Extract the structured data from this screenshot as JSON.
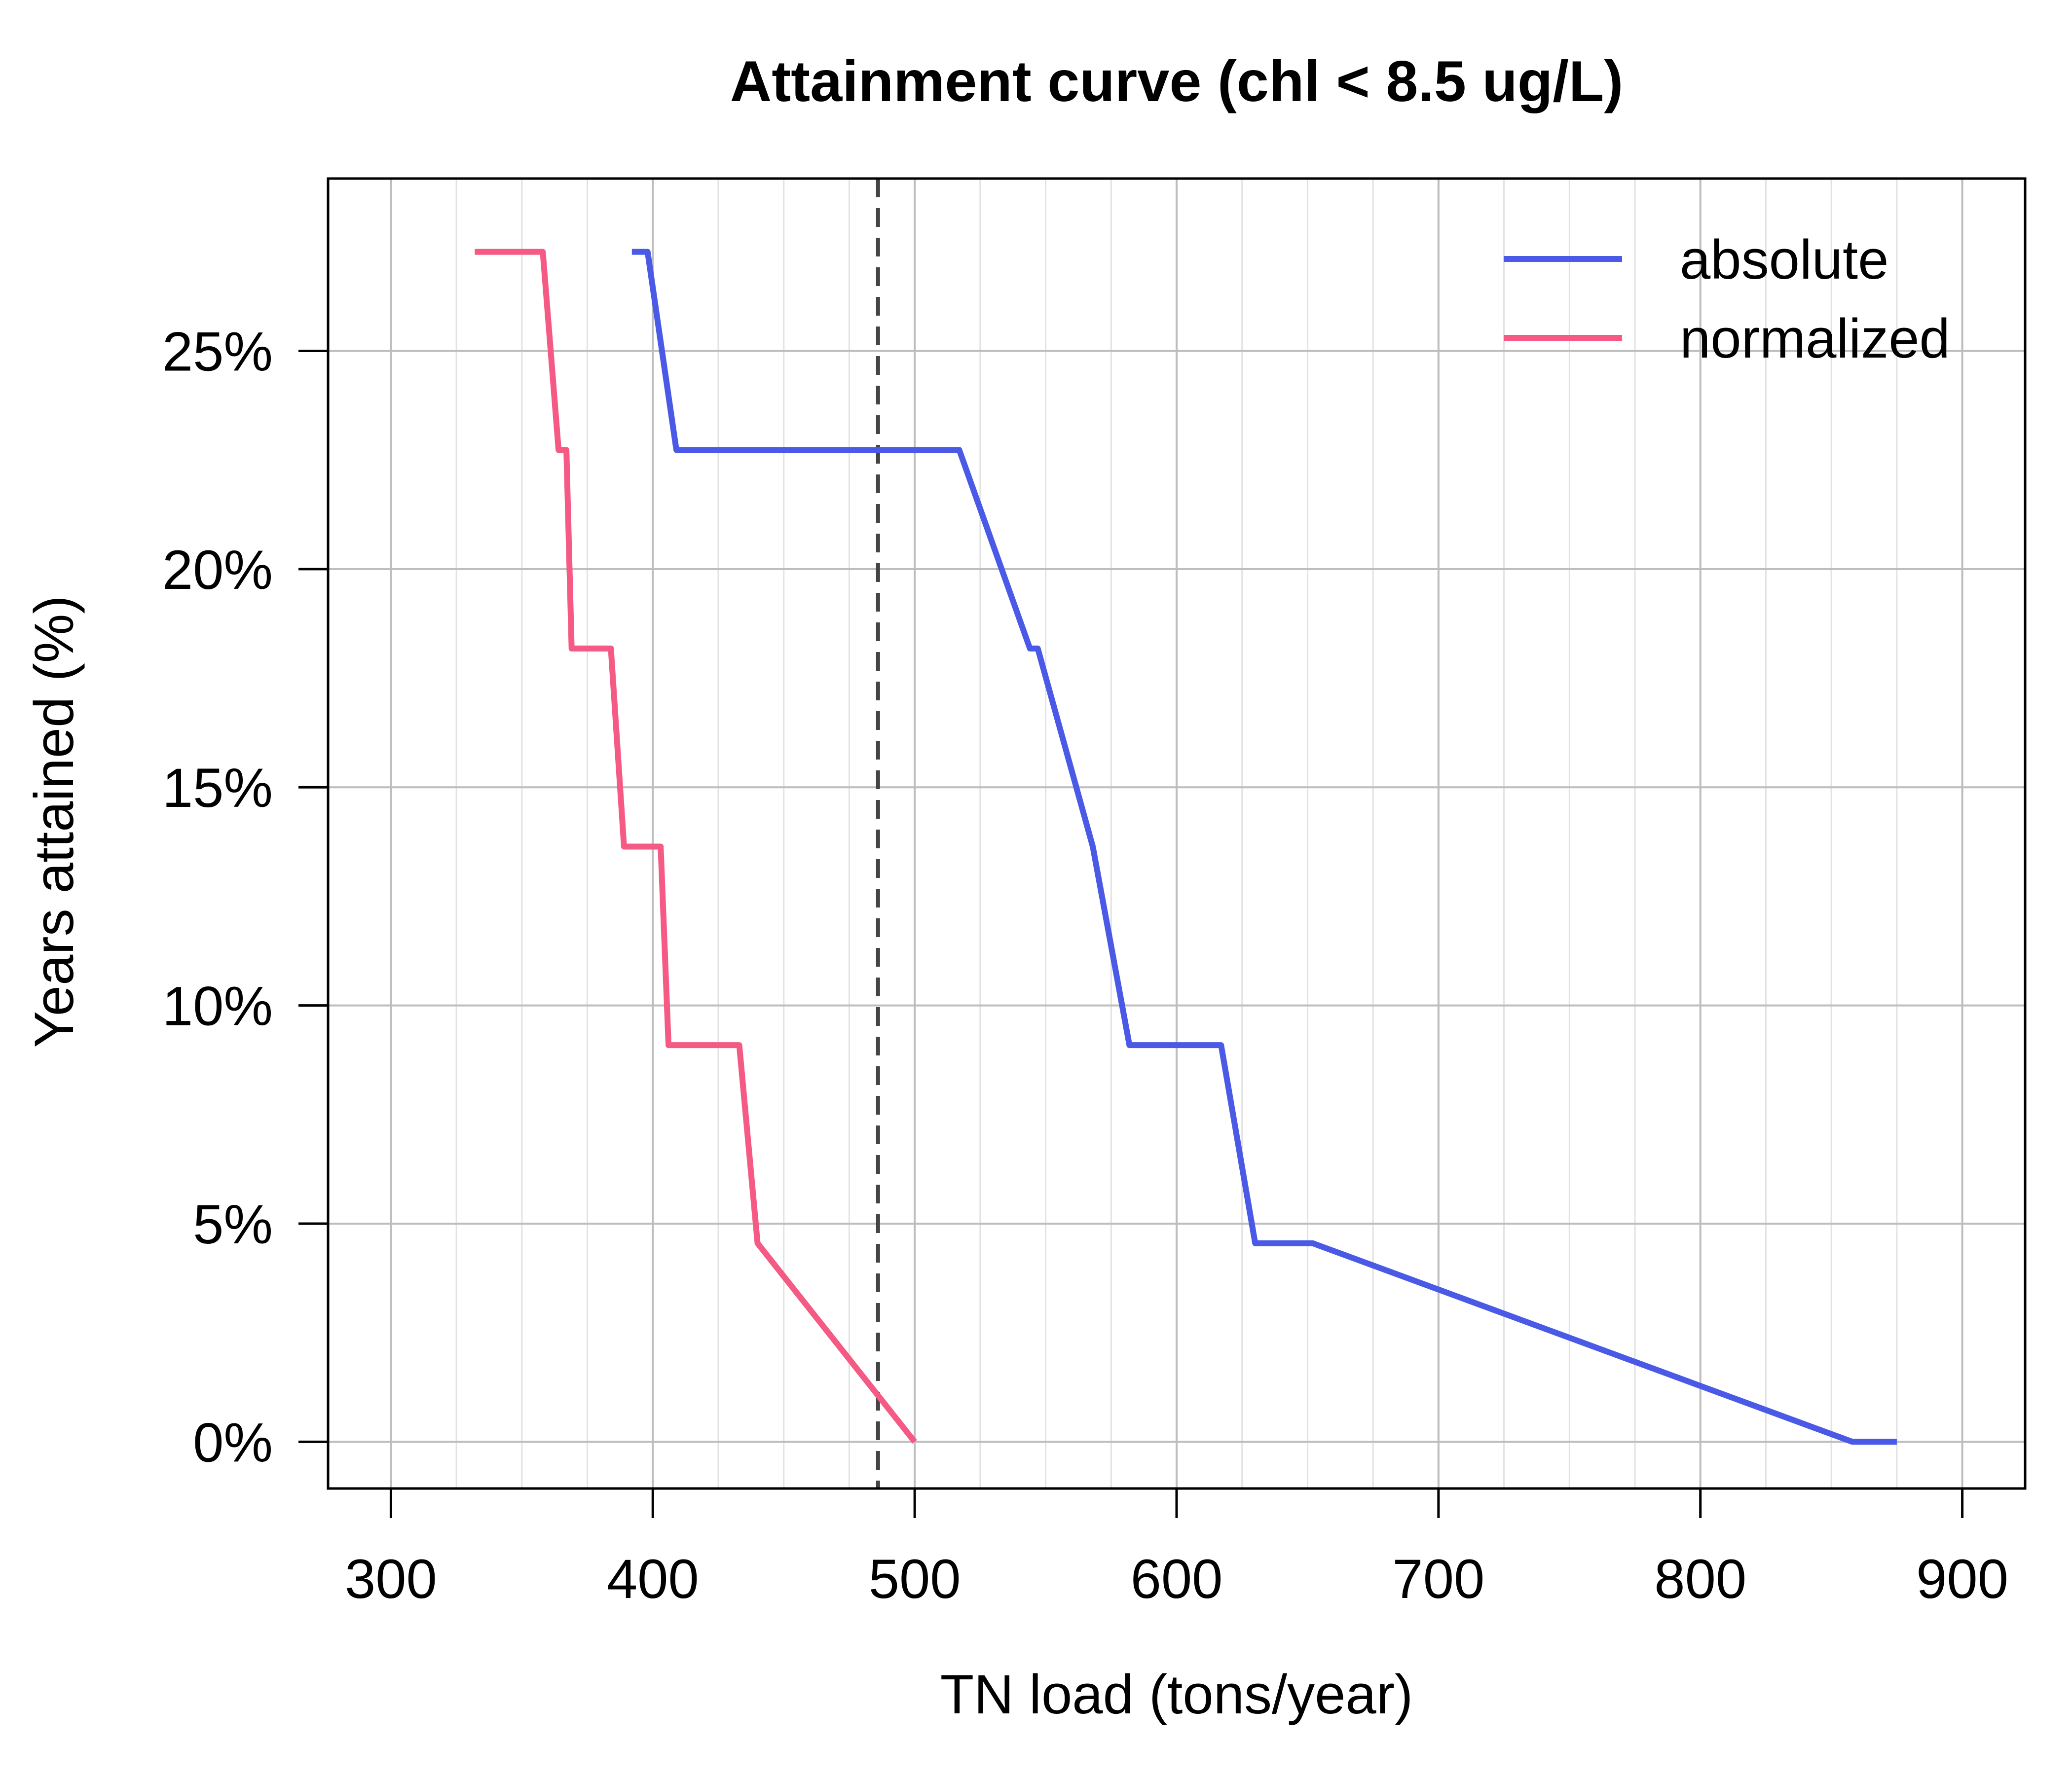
{
  "chart_data": {
    "type": "line",
    "title": "Attainment curve (chl < 8.5 ug/L)",
    "xlabel": "TN load (tons/year)",
    "ylabel": "Years attained (%)",
    "xlim": [
      276,
      924
    ],
    "ylim": [
      -1.07,
      28.95
    ],
    "x_ticks": [
      300,
      400,
      500,
      600,
      700,
      800,
      900
    ],
    "x_tick_labels": [
      "300",
      "400",
      "500",
      "600",
      "700",
      "800",
      "900"
    ],
    "y_ticks": [
      0,
      5,
      10,
      15,
      20,
      25
    ],
    "y_tick_labels": [
      "0%",
      "5%",
      "10%",
      "15%",
      "20%",
      "25%"
    ],
    "x_minor_step": 25,
    "grid": true,
    "reference_line": {
      "x": 486,
      "style": "dashed",
      "color": "#444444"
    },
    "legend_position": "top-right",
    "series": [
      {
        "name": "absolute",
        "color": "#4a5ae6",
        "points": [
          [
            392,
            27.27
          ],
          [
            398,
            27.27
          ],
          [
            409,
            22.73
          ],
          [
            517,
            22.73
          ],
          [
            544,
            18.18
          ],
          [
            547,
            18.18
          ],
          [
            568,
            13.64
          ],
          [
            582,
            9.09
          ],
          [
            617,
            9.09
          ],
          [
            630,
            4.55
          ],
          [
            652,
            4.55
          ],
          [
            858,
            0
          ],
          [
            875,
            0
          ]
        ]
      },
      {
        "name": "normalized",
        "color": "#f45a83",
        "points": [
          [
            332,
            27.27
          ],
          [
            358,
            27.27
          ],
          [
            364,
            22.73
          ],
          [
            367,
            22.73
          ],
          [
            369,
            18.18
          ],
          [
            384,
            18.18
          ],
          [
            389,
            13.64
          ],
          [
            403,
            13.64
          ],
          [
            406,
            9.09
          ],
          [
            433,
            9.09
          ],
          [
            440,
            4.55
          ],
          [
            500,
            0
          ]
        ]
      }
    ]
  }
}
